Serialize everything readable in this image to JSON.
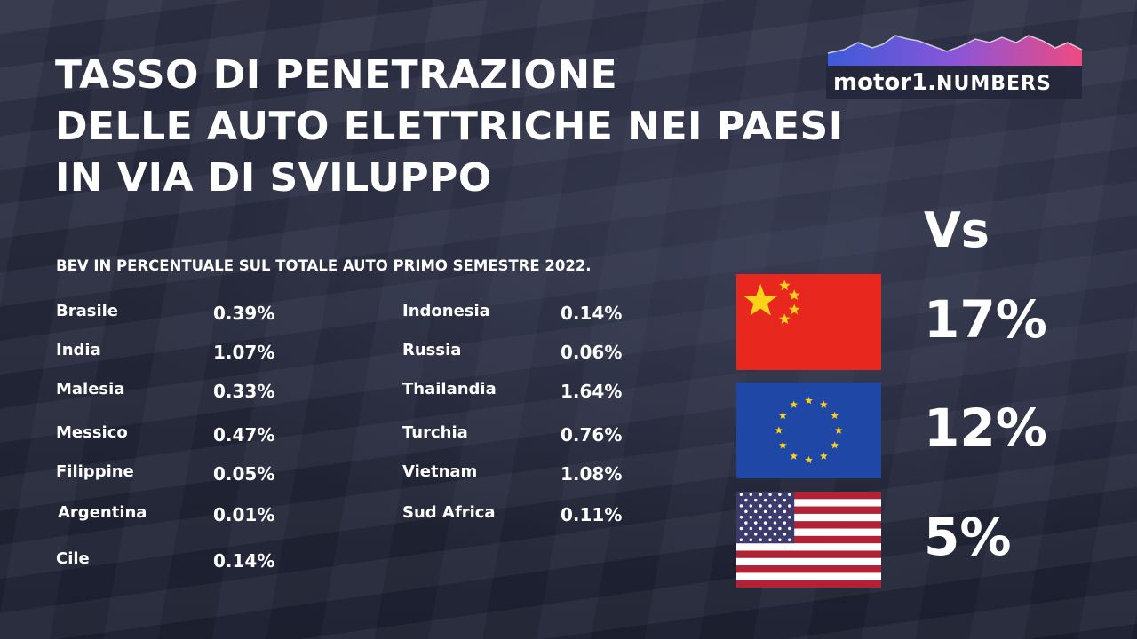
{
  "title_lines": [
    "TASSO DI PENETRAZIONE",
    "DELLE AUTO ELETTRICHE NEI PAESI",
    "IN VIA DI SVILUPPO"
  ],
  "logo": {
    "brand_left": "motor",
    "brand_mark": "1.",
    "brand_right": "NUMBERS"
  },
  "colors": {
    "china_red": "#e8281f",
    "china_star": "#ffd21a",
    "eu_blue": "#1f47a6",
    "eu_star": "#ffd21a",
    "us_red": "#b22234",
    "us_blue": "#3c3b6e",
    "logo_accent": "#e64a86"
  },
  "chart_data": {
    "type": "table",
    "title": "BEV IN PERCENTUALE SUL TOTALE AUTO PRIMO SEMESTRE 2022.",
    "columns": [
      {
        "rows": [
          {
            "country": "Brasile",
            "value": "0.39%"
          },
          {
            "country": "India",
            "value": "1.07%"
          },
          {
            "country": "Malesia",
            "value": "0.33%"
          },
          {
            "country": "Messico",
            "value": "0.47%"
          },
          {
            "country": "Filippine",
            "value": "0.05%"
          },
          {
            "country": "Argentina",
            "value": "0.01%"
          },
          {
            "country": "Cile",
            "value": "0.14%"
          }
        ]
      },
      {
        "rows": [
          {
            "country": "Indonesia",
            "value": "0.14%"
          },
          {
            "country": "Russia",
            "value": "0.06%"
          },
          {
            "country": "Thailandia",
            "value": "1.64%"
          },
          {
            "country": "Turchia",
            "value": "0.76%"
          },
          {
            "country": "Vietnam",
            "value": "1.08%"
          },
          {
            "country": "Sud Africa",
            "value": "0.11%"
          }
        ]
      }
    ],
    "comparison": {
      "label": "Vs",
      "items": [
        {
          "flag": "china-flag",
          "value": "17%"
        },
        {
          "flag": "eu-flag",
          "value": "12%"
        },
        {
          "flag": "usa-flag",
          "value": "5%"
        }
      ]
    }
  }
}
